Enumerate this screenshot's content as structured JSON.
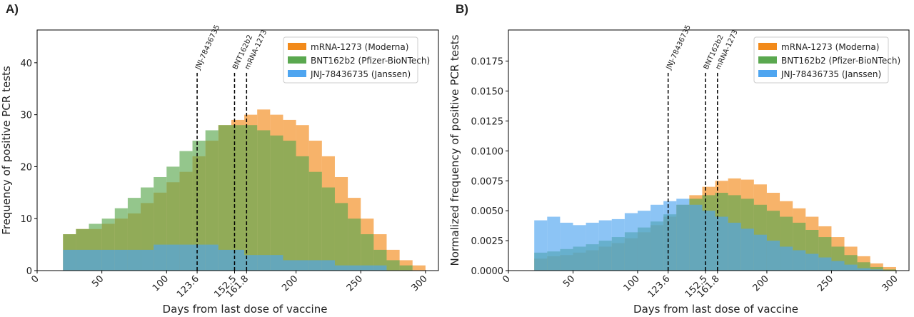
{
  "chart_data": [
    {
      "type": "histogram",
      "title": "A)",
      "xlabel": "Days from last dose of vaccine",
      "ylabel": "Frequency of positive PCR tests",
      "bins": [
        20,
        30,
        40,
        50,
        60,
        70,
        80,
        90,
        100,
        110,
        120,
        130,
        140,
        150,
        160,
        170,
        180,
        190,
        200,
        210,
        220,
        230,
        240,
        250,
        260,
        270,
        280,
        290,
        300
      ],
      "series": [
        {
          "name": "mRNA-1273 (Moderna)",
          "color": "#f28a1a",
          "values": [
            7,
            8,
            8,
            9,
            10,
            11,
            13,
            15,
            17,
            19,
            22,
            25,
            28,
            29,
            30,
            31,
            30,
            29,
            28,
            25,
            22,
            18,
            14,
            10,
            7,
            4,
            2,
            1
          ]
        },
        {
          "name": "BNT162b2 (Pfizer-BioNTech)",
          "color": "#5aa84f",
          "values": [
            7,
            8,
            9,
            10,
            12,
            14,
            16,
            18,
            20,
            23,
            25,
            27,
            28,
            28,
            28,
            27,
            26,
            25,
            22,
            19,
            16,
            13,
            10,
            7,
            4,
            2,
            1,
            0
          ]
        },
        {
          "name": "JNJ-78436735 (Janssen)",
          "color": "#4ea5f0",
          "values": [
            4,
            4,
            4,
            4,
            4,
            4,
            4,
            5,
            5,
            5,
            5,
            5,
            4,
            4,
            3,
            3,
            3,
            2,
            2,
            2,
            2,
            1,
            1,
            1,
            1,
            0,
            0,
            0
          ]
        }
      ],
      "annotations": [
        {
          "x": 123.6,
          "label": "JNJ-78436735"
        },
        {
          "x": 152.5,
          "label": "BNT162b2"
        },
        {
          "x": 161.8,
          "label": "mRNA-1273"
        }
      ],
      "xlim": [
        0,
        310
      ],
      "ylim": [
        0,
        46.3
      ],
      "xticks": [
        0,
        50,
        100,
        123.6,
        152.5,
        161.8,
        200,
        250,
        300
      ],
      "yticks": [
        0,
        10,
        20,
        30,
        40
      ],
      "legend": "upper right",
      "grid": false
    },
    {
      "type": "histogram",
      "title": "B)",
      "xlabel": "Days from last dose of vaccine",
      "ylabel": "Normalized frequency of positive PCR tests",
      "bins": [
        20,
        30,
        40,
        50,
        60,
        70,
        80,
        90,
        100,
        110,
        120,
        130,
        140,
        150,
        160,
        170,
        180,
        190,
        200,
        210,
        220,
        230,
        240,
        250,
        260,
        270,
        280,
        290,
        300
      ],
      "series": [
        {
          "name": "mRNA-1273 (Moderna)",
          "color": "#f28a1a",
          "values": [
            0.001,
            0.0012,
            0.0013,
            0.0015,
            0.0017,
            0.002,
            0.0023,
            0.0027,
            0.0032,
            0.0038,
            0.0045,
            0.0055,
            0.0063,
            0.007,
            0.0075,
            0.0077,
            0.0076,
            0.0072,
            0.0065,
            0.0058,
            0.0052,
            0.0045,
            0.0037,
            0.0028,
            0.002,
            0.0012,
            0.0006,
            0.0003
          ]
        },
        {
          "name": "BNT162b2 (Pfizer-BioNTech)",
          "color": "#5aa84f",
          "values": [
            0.0015,
            0.0016,
            0.0018,
            0.002,
            0.0022,
            0.0025,
            0.0028,
            0.0032,
            0.0036,
            0.0041,
            0.0047,
            0.0055,
            0.006,
            0.0063,
            0.0065,
            0.0063,
            0.006,
            0.0055,
            0.005,
            0.0045,
            0.004,
            0.0034,
            0.0028,
            0.002,
            0.0013,
            0.0007,
            0.0003,
            0.0001
          ]
        },
        {
          "name": "JNJ-78436735 (Janssen)",
          "color": "#4ea5f0",
          "values": [
            0.0042,
            0.0045,
            0.004,
            0.0038,
            0.004,
            0.0042,
            0.0043,
            0.0048,
            0.005,
            0.0055,
            0.0058,
            0.006,
            0.0055,
            0.005,
            0.0045,
            0.004,
            0.0035,
            0.003,
            0.0025,
            0.002,
            0.0017,
            0.0014,
            0.0011,
            0.0008,
            0.0005,
            0.0002,
            0.0001,
            0
          ]
        }
      ],
      "annotations": [
        {
          "x": 123.6,
          "label": "JNJ-78436735"
        },
        {
          "x": 152.5,
          "label": "BNT162b2"
        },
        {
          "x": 161.8,
          "label": "mRNA-1273"
        }
      ],
      "xlim": [
        0,
        310
      ],
      "ylim": [
        0,
        0.0201
      ],
      "xticks": [
        0,
        50,
        100,
        123.6,
        152.5,
        161.8,
        200,
        250,
        300
      ],
      "yticks": [
        {
          "value": 0,
          "label": "0.0000"
        },
        {
          "value": 0.0025,
          "label": "0.0025"
        },
        {
          "value": 0.005,
          "label": "0.0050"
        },
        {
          "value": 0.0075,
          "label": "0.0075"
        },
        {
          "value": 0.01,
          "label": "0.0100"
        },
        {
          "value": 0.0125,
          "label": "0.0125"
        },
        {
          "value": 0.015,
          "label": "0.0150"
        },
        {
          "value": 0.0175,
          "label": "0.0175"
        }
      ],
      "legend": "upper right",
      "grid": false
    }
  ]
}
